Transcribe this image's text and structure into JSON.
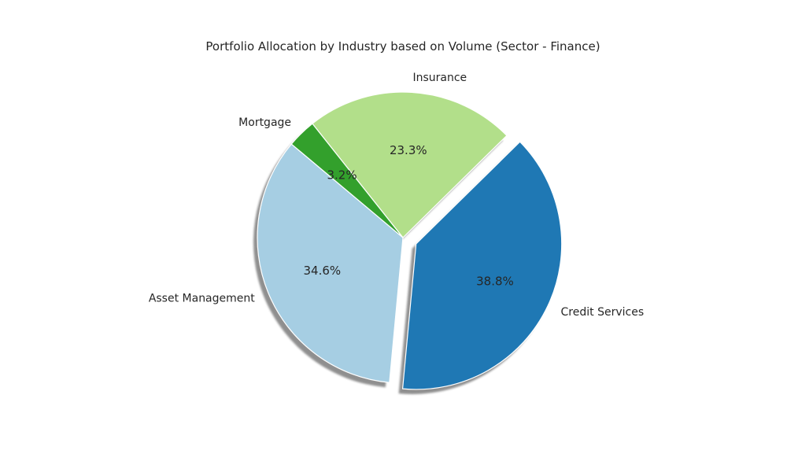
{
  "chart_data": {
    "type": "pie",
    "title": "Portfolio Allocation by Industry based on Volume (Sector - Finance)",
    "labels": [
      "Asset Management",
      "Credit Services",
      "Insurance",
      "Mortgage"
    ],
    "values": [
      34.6,
      38.8,
      23.3,
      3.2
    ],
    "percent_labels": [
      "34.6%",
      "38.8%",
      "23.3%",
      "3.2%"
    ],
    "colors": [
      "#a6cee3",
      "#1f78b4",
      "#b2df8a",
      "#33a02c"
    ],
    "explode": [
      0,
      0.1,
      0,
      0
    ],
    "start_angle_deg": 140,
    "direction": "counterclockwise",
    "shadow": true,
    "legend": "none"
  }
}
